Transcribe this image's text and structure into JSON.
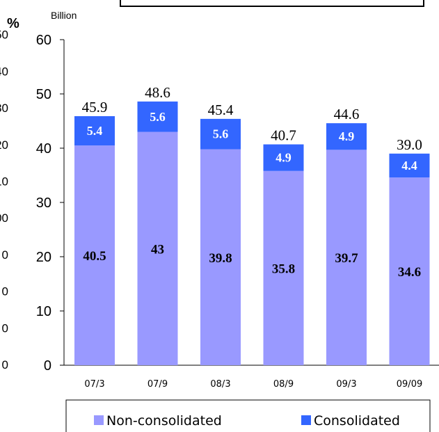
{
  "chart_data": {
    "type": "bar",
    "stacked": true,
    "categories": [
      "07/3",
      "07/9",
      "08/3",
      "08/9",
      "09/3",
      "09/09"
    ],
    "series": [
      {
        "name": "Non-consolidated",
        "values": [
          40.5,
          43.0,
          39.8,
          35.8,
          39.7,
          34.6
        ],
        "labels": [
          "40.5",
          "43",
          "39.8",
          "35.8",
          "39.7",
          "34.6"
        ],
        "color": "#9999ff"
      },
      {
        "name": "Consolidated",
        "values": [
          5.4,
          5.6,
          5.6,
          4.9,
          4.9,
          4.4
        ],
        "labels": [
          "5.4",
          "5.6",
          "5.6",
          "4.9",
          "4.9",
          "4.4"
        ],
        "color": "#3366ff"
      }
    ],
    "totals": [
      "45.9",
      "48.6",
      "45.4",
      "40.7",
      "44.6",
      "39.0"
    ],
    "ylim": [
      0,
      60
    ],
    "yticks": [
      "0",
      "10",
      "20",
      "30",
      "40",
      "50",
      "60"
    ],
    "ylabel_units": "Billion",
    "secondary_axis": {
      "label": "%",
      "ticks": [
        "0",
        "0",
        "0",
        "0",
        "00",
        "10",
        "20",
        "30",
        "40",
        "50"
      ]
    },
    "legend": {
      "position": "bottom",
      "entries": [
        "Non-consolidated",
        "Consolidated"
      ]
    },
    "grid": false
  }
}
